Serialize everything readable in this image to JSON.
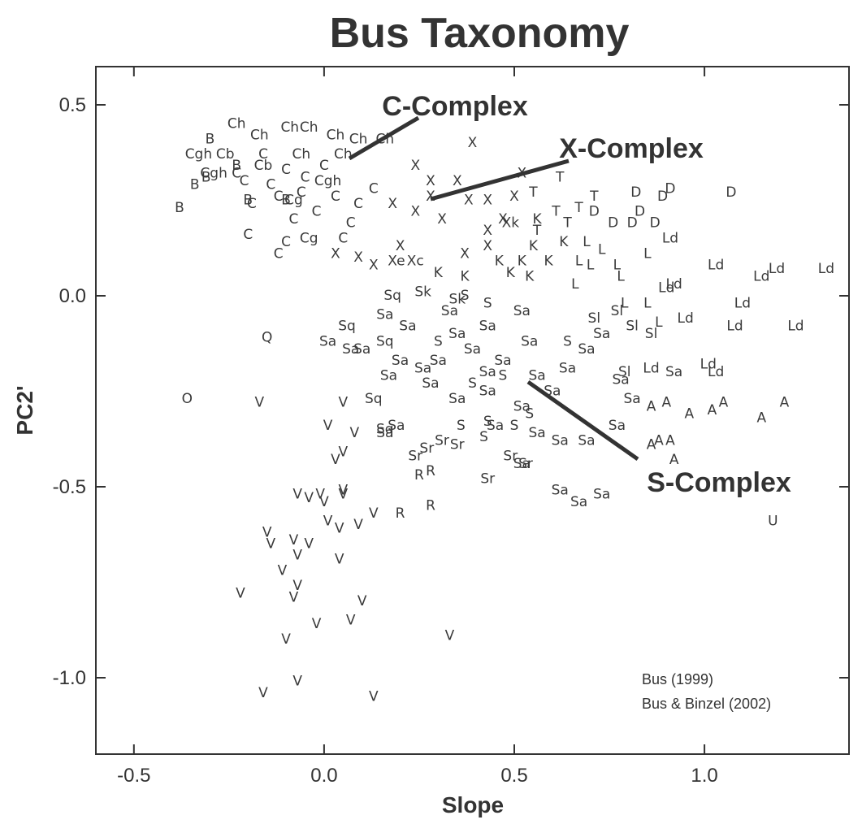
{
  "chart_data": {
    "type": "scatter",
    "title": "Bus Taxonomy",
    "x_label": "Slope",
    "y_label": "PC2'",
    "xlim": [
      -0.6,
      1.38
    ],
    "ylim": [
      -1.2,
      0.6
    ],
    "xticks": [
      -0.5,
      {
        "value": 0,
        "label": "0.0"
      },
      0.5,
      {
        "value": 1,
        "label": "1.0"
      }
    ],
    "yticks": [
      0.5,
      {
        "value": 0,
        "label": "0.0"
      },
      -0.5,
      {
        "value": -1,
        "label": "-1.0"
      }
    ],
    "marker_color": "#3a3a3a",
    "annotations": [
      "C-Complex",
      "X-Complex",
      "S-Complex"
    ],
    "source": [
      "Bus (1999)",
      "Bus & Binzel (2002)"
    ],
    "series": [
      {
        "name": "V",
        "x": [
          -0.17,
          0.05,
          0.01,
          0.08,
          0.03,
          0.05,
          -0.07,
          -0.04,
          -0.01,
          0.0,
          0.05,
          0.05,
          0.01,
          0.04,
          0.09,
          0.13,
          -0.15,
          -0.14,
          -0.08,
          -0.04,
          -0.07,
          -0.11,
          0.04,
          -0.07,
          -0.08,
          -0.22,
          0.1,
          0.07,
          -0.02,
          -0.1,
          0.33,
          -0.07,
          -0.16,
          0.13
        ],
        "values": [
          -0.28,
          -0.28,
          -0.34,
          -0.36,
          -0.43,
          -0.41,
          -0.52,
          -0.53,
          -0.52,
          -0.54,
          -0.51,
          -0.52,
          -0.59,
          -0.61,
          -0.6,
          -0.57,
          -0.62,
          -0.65,
          -0.64,
          -0.65,
          -0.68,
          -0.72,
          -0.69,
          -0.76,
          -0.79,
          -0.78,
          -0.8,
          -0.85,
          -0.86,
          -0.9,
          -0.89,
          -1.01,
          -1.04,
          -1.05
        ]
      },
      {
        "name": "O",
        "x": [
          -0.36
        ],
        "values": [
          -0.27
        ]
      },
      {
        "name": "Q",
        "x": [
          -0.15
        ],
        "values": [
          -0.11
        ]
      },
      {
        "name": "U",
        "x": [
          1.18
        ],
        "values": [
          -0.59
        ]
      },
      {
        "name": "R",
        "x": [
          0.25,
          0.28,
          0.2,
          0.28
        ],
        "values": [
          -0.47,
          -0.46,
          -0.57,
          -0.55
        ]
      },
      {
        "name": "A",
        "x": [
          0.86,
          0.88,
          0.91,
          0.92,
          0.86,
          0.9,
          0.96,
          1.02,
          1.05,
          1.15,
          1.21
        ],
        "values": [
          -0.39,
          -0.38,
          -0.38,
          -0.43,
          -0.29,
          -0.28,
          -0.31,
          -0.3,
          -0.28,
          -0.32,
          -0.28
        ]
      },
      {
        "name": "Ld",
        "x": [
          0.91,
          1.03,
          1.15,
          1.19,
          1.32,
          1.1,
          1.08,
          1.24,
          0.95,
          0.9,
          1.01,
          1.03,
          0.86,
          0.92
        ],
        "values": [
          0.15,
          0.08,
          0.05,
          0.07,
          0.07,
          -0.02,
          -0.08,
          -0.08,
          -0.06,
          0.02,
          -0.18,
          -0.2,
          -0.19,
          0.03
        ]
      },
      {
        "name": "D",
        "x": [
          0.82,
          0.89,
          0.91,
          1.07,
          0.76,
          0.81,
          0.87,
          0.83,
          0.71
        ],
        "values": [
          0.27,
          0.26,
          0.28,
          0.27,
          0.19,
          0.19,
          0.19,
          0.22,
          0.22
        ]
      },
      {
        "name": "T",
        "x": [
          0.62,
          0.71,
          0.67,
          0.61,
          0.56,
          0.64,
          0.55
        ],
        "values": [
          0.31,
          0.26,
          0.23,
          0.22,
          0.17,
          0.19,
          0.27
        ]
      },
      {
        "name": "L",
        "x": [
          0.69,
          0.73,
          0.77,
          0.85,
          0.7,
          0.78,
          0.66,
          0.79,
          0.85,
          0.88,
          0.67
        ],
        "values": [
          0.14,
          0.12,
          0.08,
          0.11,
          0.08,
          0.05,
          0.03,
          -0.02,
          -0.02,
          -0.07,
          0.09
        ]
      },
      {
        "name": "K",
        "x": [
          0.52,
          0.49,
          0.55,
          0.59,
          0.46,
          0.37,
          0.3,
          0.63,
          0.56,
          0.54
        ],
        "values": [
          0.09,
          0.06,
          0.13,
          0.09,
          0.09,
          0.05,
          0.06,
          0.14,
          0.2,
          0.05
        ]
      },
      {
        "name": "X",
        "x": [
          0.39,
          0.24,
          0.28,
          0.35,
          0.43,
          0.5,
          0.03,
          0.13,
          0.09,
          0.38,
          0.31,
          0.43,
          0.37,
          0.52,
          0.24,
          0.18,
          0.47,
          0.43,
          0.2,
          0.28
        ],
        "values": [
          0.4,
          0.34,
          0.3,
          0.3,
          0.25,
          0.26,
          0.11,
          0.08,
          0.1,
          0.25,
          0.2,
          0.17,
          0.11,
          0.32,
          0.22,
          0.24,
          0.2,
          0.13,
          0.13,
          0.26
        ]
      },
      {
        "name": "Xe",
        "x": [
          0.19
        ],
        "values": [
          0.09
        ]
      },
      {
        "name": "Xc",
        "x": [
          0.24
        ],
        "values": [
          0.09
        ]
      },
      {
        "name": "Xk",
        "x": [
          0.49
        ],
        "values": [
          0.19
        ]
      },
      {
        "name": "Ch",
        "x": [
          -0.23,
          -0.09,
          -0.04,
          0.03,
          0.09,
          0.16,
          -0.17,
          -0.06,
          0.05
        ],
        "values": [
          0.45,
          0.44,
          0.44,
          0.42,
          0.41,
          0.41,
          0.42,
          0.37,
          0.37
        ]
      },
      {
        "name": "Cgh",
        "x": [
          -0.33,
          -0.29,
          0.01
        ],
        "values": [
          0.37,
          0.32,
          0.3
        ]
      },
      {
        "name": "B",
        "x": [
          -0.31,
          -0.34,
          -0.38,
          -0.3,
          -0.2,
          -0.23,
          -0.1
        ],
        "values": [
          0.31,
          0.29,
          0.23,
          0.41,
          0.25,
          0.34,
          0.25
        ]
      },
      {
        "name": "Cb",
        "x": [
          -0.26,
          -0.16
        ],
        "values": [
          0.37,
          0.34
        ]
      },
      {
        "name": "C",
        "x": [
          -0.19,
          -0.2,
          -0.12,
          -0.12,
          -0.02,
          -0.08,
          0.07,
          -0.21,
          -0.14,
          -0.1,
          -0.05,
          0.03,
          0.09,
          -0.16,
          -0.23,
          -0.06,
          0.0,
          0.13,
          0.05,
          -0.1
        ],
        "values": [
          0.24,
          0.16,
          0.11,
          0.26,
          0.22,
          0.2,
          0.19,
          0.3,
          0.29,
          0.33,
          0.31,
          0.26,
          0.24,
          0.37,
          0.32,
          0.27,
          0.34,
          0.28,
          0.15,
          0.14
        ]
      },
      {
        "name": "Cg",
        "x": [
          -0.04,
          -0.08
        ],
        "values": [
          0.15,
          0.25
        ]
      },
      {
        "name": "Sq",
        "x": [
          0.06,
          0.18,
          0.16,
          0.13,
          0.16
        ],
        "values": [
          -0.08,
          0.0,
          -0.12,
          -0.27,
          -0.35
        ]
      },
      {
        "name": "Sa",
        "x": [
          0.01,
          0.07,
          0.1,
          0.17,
          0.19,
          0.16,
          0.62,
          0.67,
          0.73,
          0.77,
          0.81,
          0.92,
          0.78,
          0.69,
          0.62,
          0.52,
          0.28,
          0.35,
          0.43,
          0.52,
          0.3,
          0.39,
          0.47,
          0.56,
          0.64,
          0.22,
          0.16,
          0.43,
          0.54,
          0.69,
          0.73,
          0.35,
          0.26,
          0.43,
          0.6,
          0.2,
          0.52,
          0.33,
          0.45,
          0.56
        ],
        "values": [
          -0.12,
          -0.14,
          -0.14,
          -0.21,
          -0.34,
          -0.36,
          -0.51,
          -0.54,
          -0.52,
          -0.34,
          -0.27,
          -0.2,
          -0.22,
          -0.38,
          -0.38,
          -0.44,
          -0.23,
          -0.27,
          -0.25,
          -0.29,
          -0.17,
          -0.14,
          -0.17,
          -0.21,
          -0.19,
          -0.08,
          -0.05,
          -0.08,
          -0.12,
          -0.14,
          -0.1,
          -0.1,
          -0.19,
          -0.2,
          -0.25,
          -0.17,
          -0.04,
          -0.04,
          -0.34,
          -0.36
        ]
      },
      {
        "name": "Sr",
        "x": [
          0.24,
          0.27,
          0.35,
          0.43,
          0.49,
          0.53,
          0.31
        ],
        "values": [
          -0.42,
          -0.4,
          -0.39,
          -0.48,
          -0.42,
          -0.44,
          -0.38
        ]
      },
      {
        "name": "S",
        "x": [
          0.42,
          0.43,
          0.5,
          0.36,
          0.54,
          0.39,
          0.47,
          0.3,
          0.43,
          0.37,
          0.64
        ],
        "values": [
          -0.37,
          -0.33,
          -0.34,
          -0.34,
          -0.31,
          -0.23,
          -0.21,
          -0.12,
          -0.02,
          0.0,
          -0.12
        ]
      },
      {
        "name": "Sl",
        "x": [
          0.77,
          0.71,
          0.81,
          0.79,
          0.86
        ],
        "values": [
          -0.04,
          -0.06,
          -0.08,
          -0.2,
          -0.1
        ]
      },
      {
        "name": "Sk",
        "x": [
          0.26,
          0.35
        ],
        "values": [
          0.01,
          -0.01
        ]
      }
    ]
  }
}
